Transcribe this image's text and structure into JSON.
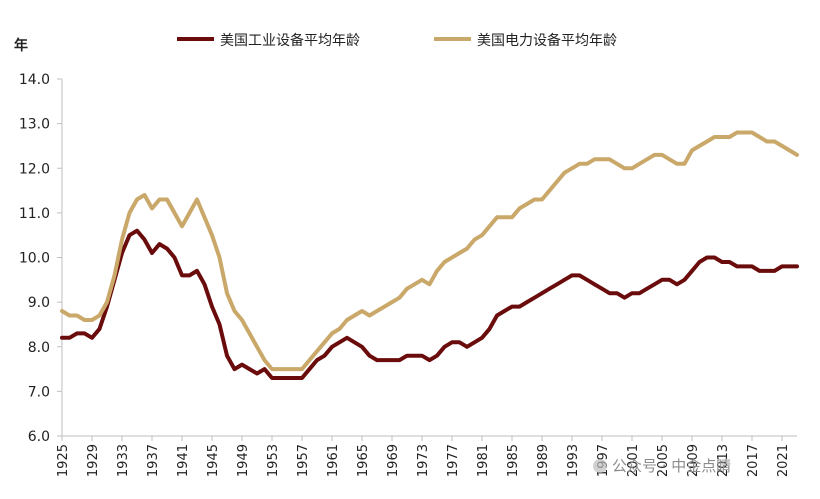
{
  "chart_data": {
    "type": "line",
    "ylabel": "年",
    "ylim": [
      6.0,
      14.0
    ],
    "yticks": [
      "6.0",
      "7.0",
      "8.0",
      "9.0",
      "10.0",
      "11.0",
      "12.0",
      "13.0",
      "14.0"
    ],
    "xlim": [
      1925,
      2023
    ],
    "xticks": [
      1925,
      1929,
      1933,
      1937,
      1941,
      1945,
      1949,
      1953,
      1957,
      1961,
      1965,
      1969,
      1973,
      1977,
      1981,
      1985,
      1989,
      1993,
      1997,
      2001,
      2005,
      2009,
      2013,
      2017,
      2021
    ],
    "legend_position": "top",
    "grid": false,
    "x": [
      1925,
      1926,
      1927,
      1928,
      1929,
      1930,
      1931,
      1932,
      1933,
      1934,
      1935,
      1936,
      1937,
      1938,
      1939,
      1940,
      1941,
      1942,
      1943,
      1944,
      1945,
      1946,
      1947,
      1948,
      1949,
      1950,
      1951,
      1952,
      1953,
      1954,
      1955,
      1956,
      1957,
      1958,
      1959,
      1960,
      1961,
      1962,
      1963,
      1964,
      1965,
      1966,
      1967,
      1968,
      1969,
      1970,
      1971,
      1972,
      1973,
      1974,
      1975,
      1976,
      1977,
      1978,
      1979,
      1980,
      1981,
      1982,
      1983,
      1984,
      1985,
      1986,
      1987,
      1988,
      1989,
      1990,
      1991,
      1992,
      1993,
      1994,
      1995,
      1996,
      1997,
      1998,
      1999,
      2000,
      2001,
      2002,
      2003,
      2004,
      2005,
      2006,
      2007,
      2008,
      2009,
      2010,
      2011,
      2012,
      2013,
      2014,
      2015,
      2016,
      2017,
      2018,
      2019,
      2020,
      2021,
      2022,
      2023
    ],
    "series": [
      {
        "name": "美国工业设备平均年龄",
        "color": "#6b0c0c",
        "values": [
          8.2,
          8.2,
          8.3,
          8.3,
          8.2,
          8.4,
          8.9,
          9.5,
          10.1,
          10.5,
          10.6,
          10.4,
          10.1,
          10.3,
          10.2,
          10.0,
          9.6,
          9.6,
          9.7,
          9.4,
          8.9,
          8.5,
          7.8,
          7.5,
          7.6,
          7.5,
          7.4,
          7.5,
          7.3,
          7.3,
          7.3,
          7.3,
          7.3,
          7.5,
          7.7,
          7.8,
          8.0,
          8.1,
          8.2,
          8.1,
          8.0,
          7.8,
          7.7,
          7.7,
          7.7,
          7.7,
          7.8,
          7.8,
          7.8,
          7.7,
          7.8,
          8.0,
          8.1,
          8.1,
          8.0,
          8.1,
          8.2,
          8.4,
          8.7,
          8.8,
          8.9,
          8.9,
          9.0,
          9.1,
          9.2,
          9.3,
          9.4,
          9.5,
          9.6,
          9.6,
          9.5,
          9.4,
          9.3,
          9.2,
          9.2,
          9.1,
          9.2,
          9.2,
          9.3,
          9.4,
          9.5,
          9.5,
          9.4,
          9.5,
          9.7,
          9.9,
          10.0,
          10.0,
          9.9,
          9.9,
          9.8,
          9.8,
          9.8,
          9.7,
          9.7,
          9.7,
          9.8,
          9.8,
          9.8
        ]
      },
      {
        "name": "美国电力设备平均年龄",
        "color": "#c9a86a",
        "values": [
          8.8,
          8.7,
          8.7,
          8.6,
          8.6,
          8.7,
          9.0,
          9.6,
          10.4,
          11.0,
          11.3,
          11.4,
          11.1,
          11.3,
          11.3,
          11.0,
          10.7,
          11.0,
          11.3,
          10.9,
          10.5,
          10.0,
          9.2,
          8.8,
          8.6,
          8.3,
          8.0,
          7.7,
          7.5,
          7.5,
          7.5,
          7.5,
          7.5,
          7.7,
          7.9,
          8.1,
          8.3,
          8.4,
          8.6,
          8.7,
          8.8,
          8.7,
          8.8,
          8.9,
          9.0,
          9.1,
          9.3,
          9.4,
          9.5,
          9.4,
          9.7,
          9.9,
          10.0,
          10.1,
          10.2,
          10.4,
          10.5,
          10.7,
          10.9,
          10.9,
          10.9,
          11.1,
          11.2,
          11.3,
          11.3,
          11.5,
          11.7,
          11.9,
          12.0,
          12.1,
          12.1,
          12.2,
          12.2,
          12.2,
          12.1,
          12.0,
          12.0,
          12.1,
          12.2,
          12.3,
          12.3,
          12.2,
          12.1,
          12.1,
          12.4,
          12.5,
          12.6,
          12.7,
          12.7,
          12.7,
          12.8,
          12.8,
          12.8,
          12.7,
          12.6,
          12.6,
          12.5,
          12.4,
          12.3
        ]
      }
    ]
  },
  "watermark": {
    "text": "公众号 · 中金点睛"
  }
}
